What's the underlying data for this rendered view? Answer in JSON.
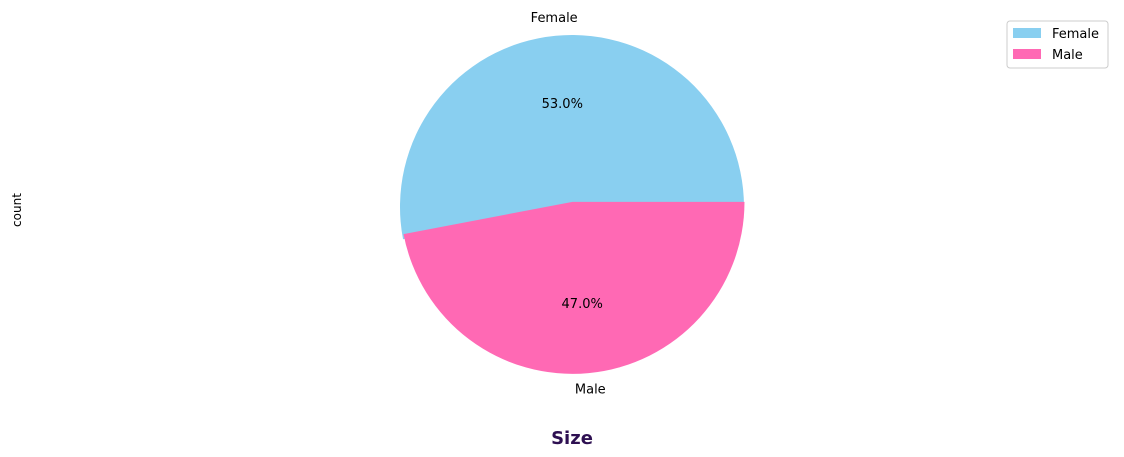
{
  "chart_data": {
    "type": "pie",
    "categories": [
      "Female",
      "Male"
    ],
    "values": [
      53.0,
      47.0
    ],
    "percent_labels": [
      "53.0%",
      "47.0%"
    ],
    "colors": [
      "#89CFF0",
      "#FF69B4"
    ],
    "explode": [
      0.0,
      0.03
    ],
    "start_angle_deg": 0,
    "xlabel": "Size",
    "xlabel_color": "#2E1052",
    "ylabel": "count",
    "legend": {
      "entries": [
        "Female",
        "Male"
      ],
      "placement": "top-right"
    }
  }
}
